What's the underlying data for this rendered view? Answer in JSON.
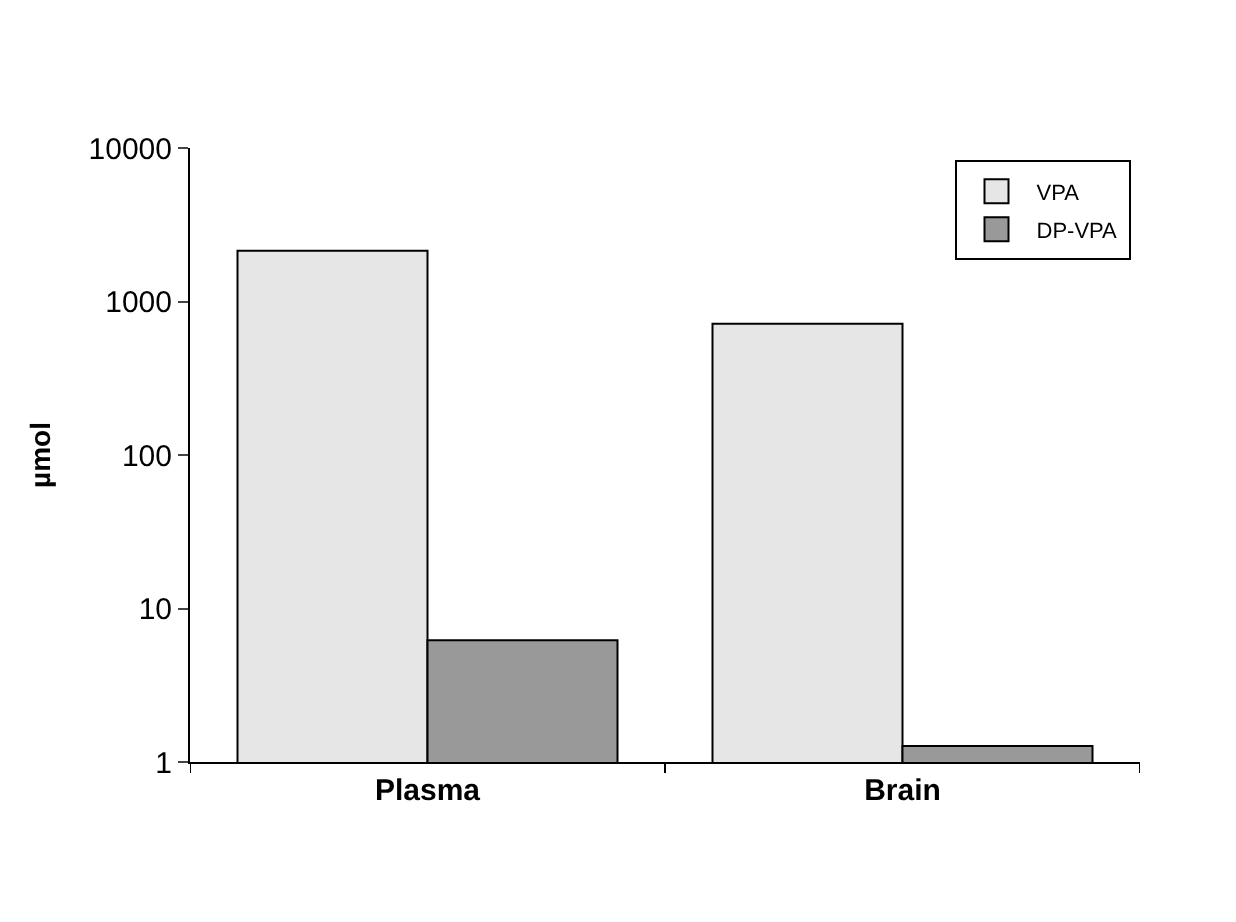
{
  "chart_data": {
    "type": "bar",
    "ylabel": "µmol",
    "categories": [
      "Plasma",
      "Brain"
    ],
    "series": [
      {
        "name": "VPA",
        "color": "#e6e6e6",
        "values": [
          2140,
          716
        ]
      },
      {
        "name": "DP-VPA",
        "color": "#999999",
        "values": [
          6.2,
          1.27
        ]
      }
    ],
    "log": true,
    "ylim": [
      1,
      10000
    ],
    "yticks": [
      1,
      10,
      100,
      1000,
      10000
    ],
    "grid": false,
    "legend": "top right"
  }
}
